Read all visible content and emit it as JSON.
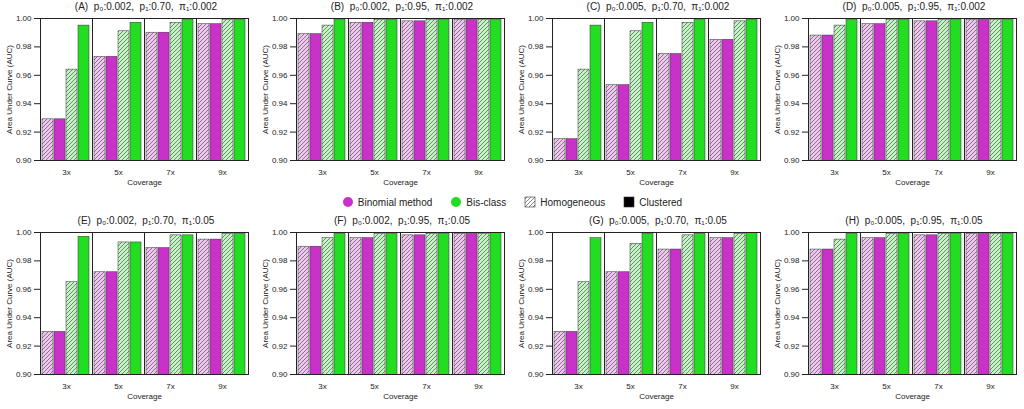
{
  "chart_data": [
    {
      "type": "bar",
      "title": "(A)  p₀:0.002,  p₁:0.70,  π₁:0.002",
      "xlabel": "Coverage",
      "ylabel": "Area Under Curve (AUC)",
      "categories": [
        "3x",
        "5x",
        "7x",
        "9x"
      ],
      "series": [
        {
          "name": "Binomial method",
          "group": "Homogeneous",
          "marker": "hatched",
          "color": "#c832c8",
          "values": [
            0.929,
            0.973,
            0.99,
            0.996
          ]
        },
        {
          "name": "Binomial method",
          "group": "Clustered",
          "marker": "solid",
          "color": "#c832c8",
          "values": [
            0.929,
            0.973,
            0.99,
            0.996
          ]
        },
        {
          "name": "Bis-class",
          "group": "Homogeneous",
          "marker": "hatched",
          "color": "#22dd22",
          "values": [
            0.964,
            0.991,
            0.997,
            0.999
          ]
        },
        {
          "name": "Bis-class",
          "group": "Clustered",
          "marker": "solid",
          "color": "#22dd22",
          "values": [
            0.995,
            0.997,
            0.999,
            0.999
          ]
        }
      ],
      "ylim": [
        0.9,
        1.0
      ],
      "yticks": [
        {
          "value": 0.9,
          "label": "0.90"
        },
        {
          "value": 0.92,
          "label": "0.92"
        },
        {
          "value": 0.94,
          "label": "0.94"
        },
        {
          "value": 0.96,
          "label": "0.96"
        },
        {
          "value": 0.98,
          "label": "0.98"
        },
        {
          "value": 1.0,
          "label": "1.00"
        }
      ]
    },
    {
      "type": "bar",
      "title": "(B)  p₀:0.002,  p₁:0.95,  π₁:0.002",
      "xlabel": "Coverage",
      "ylabel": "Area Under Curve (AUC)",
      "categories": [
        "3x",
        "5x",
        "7x",
        "9x"
      ],
      "series": [
        {
          "name": "Binomial method",
          "group": "Homogeneous",
          "marker": "hatched",
          "color": "#c832c8",
          "values": [
            0.989,
            0.997,
            0.998,
            0.999
          ]
        },
        {
          "name": "Binomial method",
          "group": "Clustered",
          "marker": "solid",
          "color": "#c832c8",
          "values": [
            0.989,
            0.997,
            0.998,
            0.999
          ]
        },
        {
          "name": "Bis-class",
          "group": "Homogeneous",
          "marker": "hatched",
          "color": "#22dd22",
          "values": [
            0.995,
            0.999,
            0.999,
            0.999
          ]
        },
        {
          "name": "Bis-class",
          "group": "Clustered",
          "marker": "solid",
          "color": "#22dd22",
          "values": [
            0.999,
            0.999,
            0.999,
            0.999
          ]
        }
      ],
      "ylim": [
        0.9,
        1.0
      ],
      "yticks": [
        {
          "value": 0.9,
          "label": "0.90"
        },
        {
          "value": 0.92,
          "label": "0.92"
        },
        {
          "value": 0.94,
          "label": "0.94"
        },
        {
          "value": 0.96,
          "label": "0.96"
        },
        {
          "value": 0.98,
          "label": "0.98"
        },
        {
          "value": 1.0,
          "label": "1.00"
        }
      ]
    },
    {
      "type": "bar",
      "title": "(C)  p₀:0.005,  p₁:0.70,  π₁:0.002",
      "xlabel": "Coverage",
      "ylabel": "Area Under Curve (AUC)",
      "categories": [
        "3x",
        "5x",
        "7x",
        "9x"
      ],
      "series": [
        {
          "name": "Binomial method",
          "group": "Homogeneous",
          "marker": "hatched",
          "color": "#c832c8",
          "values": [
            0.915,
            0.953,
            0.975,
            0.985
          ]
        },
        {
          "name": "Binomial method",
          "group": "Clustered",
          "marker": "solid",
          "color": "#c832c8",
          "values": [
            0.915,
            0.953,
            0.975,
            0.985
          ]
        },
        {
          "name": "Bis-class",
          "group": "Homogeneous",
          "marker": "hatched",
          "color": "#22dd22",
          "values": [
            0.964,
            0.991,
            0.997,
            0.998
          ]
        },
        {
          "name": "Bis-class",
          "group": "Clustered",
          "marker": "solid",
          "color": "#22dd22",
          "values": [
            0.995,
            0.997,
            0.999,
            0.999
          ]
        }
      ],
      "ylim": [
        0.9,
        1.0
      ],
      "yticks": [
        {
          "value": 0.9,
          "label": "0.90"
        },
        {
          "value": 0.92,
          "label": "0.92"
        },
        {
          "value": 0.94,
          "label": "0.94"
        },
        {
          "value": 0.96,
          "label": "0.96"
        },
        {
          "value": 0.98,
          "label": "0.98"
        },
        {
          "value": 1.0,
          "label": "1.00"
        }
      ]
    },
    {
      "type": "bar",
      "title": "(D)  p₀:0.005,  p₁:0.95,  π₁:0.002",
      "xlabel": "Coverage",
      "ylabel": "Area Under Curve (AUC)",
      "categories": [
        "3x",
        "5x",
        "7x",
        "9x"
      ],
      "series": [
        {
          "name": "Binomial method",
          "group": "Homogeneous",
          "marker": "hatched",
          "color": "#c832c8",
          "values": [
            0.988,
            0.996,
            0.998,
            0.999
          ]
        },
        {
          "name": "Binomial method",
          "group": "Clustered",
          "marker": "solid",
          "color": "#c832c8",
          "values": [
            0.988,
            0.996,
            0.998,
            0.999
          ]
        },
        {
          "name": "Bis-class",
          "group": "Homogeneous",
          "marker": "hatched",
          "color": "#22dd22",
          "values": [
            0.995,
            0.999,
            0.999,
            0.999
          ]
        },
        {
          "name": "Bis-class",
          "group": "Clustered",
          "marker": "solid",
          "color": "#22dd22",
          "values": [
            0.999,
            0.999,
            0.999,
            0.999
          ]
        }
      ],
      "ylim": [
        0.9,
        1.0
      ],
      "yticks": [
        {
          "value": 0.9,
          "label": "0.90"
        },
        {
          "value": 0.92,
          "label": "0.92"
        },
        {
          "value": 0.94,
          "label": "0.94"
        },
        {
          "value": 0.96,
          "label": "0.96"
        },
        {
          "value": 0.98,
          "label": "0.98"
        },
        {
          "value": 1.0,
          "label": "1.00"
        }
      ]
    },
    {
      "type": "bar",
      "title": "(E)  p₀:0.002,  p₁:0.70,  π₁:0.05",
      "xlabel": "Coverage",
      "ylabel": "Area Under Curve (AUC)",
      "categories": [
        "3x",
        "5x",
        "7x",
        "9x"
      ],
      "series": [
        {
          "name": "Binomial method",
          "group": "Homogeneous",
          "marker": "hatched",
          "color": "#c832c8",
          "values": [
            0.93,
            0.972,
            0.989,
            0.995
          ]
        },
        {
          "name": "Binomial method",
          "group": "Clustered",
          "marker": "solid",
          "color": "#c832c8",
          "values": [
            0.93,
            0.972,
            0.989,
            0.995
          ]
        },
        {
          "name": "Bis-class",
          "group": "Homogeneous",
          "marker": "hatched",
          "color": "#22dd22",
          "values": [
            0.965,
            0.993,
            0.998,
            0.999
          ]
        },
        {
          "name": "Bis-class",
          "group": "Clustered",
          "marker": "solid",
          "color": "#22dd22",
          "values": [
            0.997,
            0.993,
            0.998,
            0.999
          ]
        }
      ],
      "ylim": [
        0.9,
        1.0
      ],
      "yticks": [
        {
          "value": 0.9,
          "label": "0.90"
        },
        {
          "value": 0.92,
          "label": "0.92"
        },
        {
          "value": 0.94,
          "label": "0.94"
        },
        {
          "value": 0.96,
          "label": "0.96"
        },
        {
          "value": 0.98,
          "label": "0.98"
        },
        {
          "value": 1.0,
          "label": "1.00"
        }
      ]
    },
    {
      "type": "bar",
      "title": "(F)  p₀:0.002,  p₁:0.95,  π₁:0.05",
      "xlabel": "Coverage",
      "ylabel": "Area Under Curve (AUC)",
      "categories": [
        "3x",
        "5x",
        "7x",
        "9x"
      ],
      "series": [
        {
          "name": "Binomial method",
          "group": "Homogeneous",
          "marker": "hatched",
          "color": "#c832c8",
          "values": [
            0.99,
            0.996,
            0.998,
            0.999
          ]
        },
        {
          "name": "Binomial method",
          "group": "Clustered",
          "marker": "solid",
          "color": "#c832c8",
          "values": [
            0.99,
            0.996,
            0.998,
            0.999
          ]
        },
        {
          "name": "Bis-class",
          "group": "Homogeneous",
          "marker": "hatched",
          "color": "#22dd22",
          "values": [
            0.996,
            0.999,
            0.999,
            0.999
          ]
        },
        {
          "name": "Bis-class",
          "group": "Clustered",
          "marker": "solid",
          "color": "#22dd22",
          "values": [
            0.999,
            0.999,
            0.999,
            1.0
          ]
        }
      ],
      "ylim": [
        0.9,
        1.0
      ],
      "yticks": [
        {
          "value": 0.9,
          "label": "0.90"
        },
        {
          "value": 0.92,
          "label": "0.92"
        },
        {
          "value": 0.94,
          "label": "0.94"
        },
        {
          "value": 0.96,
          "label": "0.96"
        },
        {
          "value": 0.98,
          "label": "0.98"
        },
        {
          "value": 1.0,
          "label": "1.00"
        }
      ]
    },
    {
      "type": "bar",
      "title": "(G)  p₀:0.005,  p₁:0.70,  π₁:0.05",
      "xlabel": "Coverage",
      "ylabel": "Area Under Curve (AUC)",
      "categories": [
        "3x",
        "5x",
        "7x",
        "9x"
      ],
      "series": [
        {
          "name": "Binomial method",
          "group": "Homogeneous",
          "marker": "hatched",
          "color": "#c832c8",
          "values": [
            0.93,
            0.972,
            0.988,
            0.996
          ]
        },
        {
          "name": "Binomial method",
          "group": "Clustered",
          "marker": "solid",
          "color": "#c832c8",
          "values": [
            0.93,
            0.972,
            0.988,
            0.996
          ]
        },
        {
          "name": "Bis-class",
          "group": "Homogeneous",
          "marker": "hatched",
          "color": "#22dd22",
          "values": [
            0.965,
            0.992,
            0.998,
            0.999
          ]
        },
        {
          "name": "Bis-class",
          "group": "Clustered",
          "marker": "solid",
          "color": "#22dd22",
          "values": [
            0.996,
            0.999,
            0.999,
            1.0
          ]
        }
      ],
      "ylim": [
        0.9,
        1.0
      ],
      "yticks": [
        {
          "value": 0.9,
          "label": "0.90"
        },
        {
          "value": 0.92,
          "label": "0.92"
        },
        {
          "value": 0.94,
          "label": "0.94"
        },
        {
          "value": 0.96,
          "label": "0.96"
        },
        {
          "value": 0.98,
          "label": "0.98"
        },
        {
          "value": 1.0,
          "label": "1.00"
        }
      ]
    },
    {
      "type": "bar",
      "title": "(H)  p₀:0.005,  p₁:0.95,  π₁:0.05",
      "xlabel": "Coverage",
      "ylabel": "Area Under Curve (AUC)",
      "categories": [
        "3x",
        "5x",
        "7x",
        "9x"
      ],
      "series": [
        {
          "name": "Binomial method",
          "group": "Homogeneous",
          "marker": "hatched",
          "color": "#c832c8",
          "values": [
            0.988,
            0.996,
            0.998,
            0.999
          ]
        },
        {
          "name": "Binomial method",
          "group": "Clustered",
          "marker": "solid",
          "color": "#c832c8",
          "values": [
            0.988,
            0.996,
            0.998,
            0.999
          ]
        },
        {
          "name": "Bis-class",
          "group": "Homogeneous",
          "marker": "hatched",
          "color": "#22dd22",
          "values": [
            0.995,
            0.999,
            0.999,
            0.999
          ]
        },
        {
          "name": "Bis-class",
          "group": "Clustered",
          "marker": "solid",
          "color": "#22dd22",
          "values": [
            0.999,
            0.999,
            0.999,
            0.999
          ]
        }
      ],
      "ylim": [
        0.9,
        1.0
      ],
      "yticks": [
        {
          "value": 0.9,
          "label": "0.90"
        },
        {
          "value": 0.92,
          "label": "0.92"
        },
        {
          "value": 0.94,
          "label": "0.94"
        },
        {
          "value": 0.96,
          "label": "0.96"
        },
        {
          "value": 0.98,
          "label": "0.98"
        },
        {
          "value": 1.0,
          "label": "1.00"
        }
      ]
    }
  ]
}
